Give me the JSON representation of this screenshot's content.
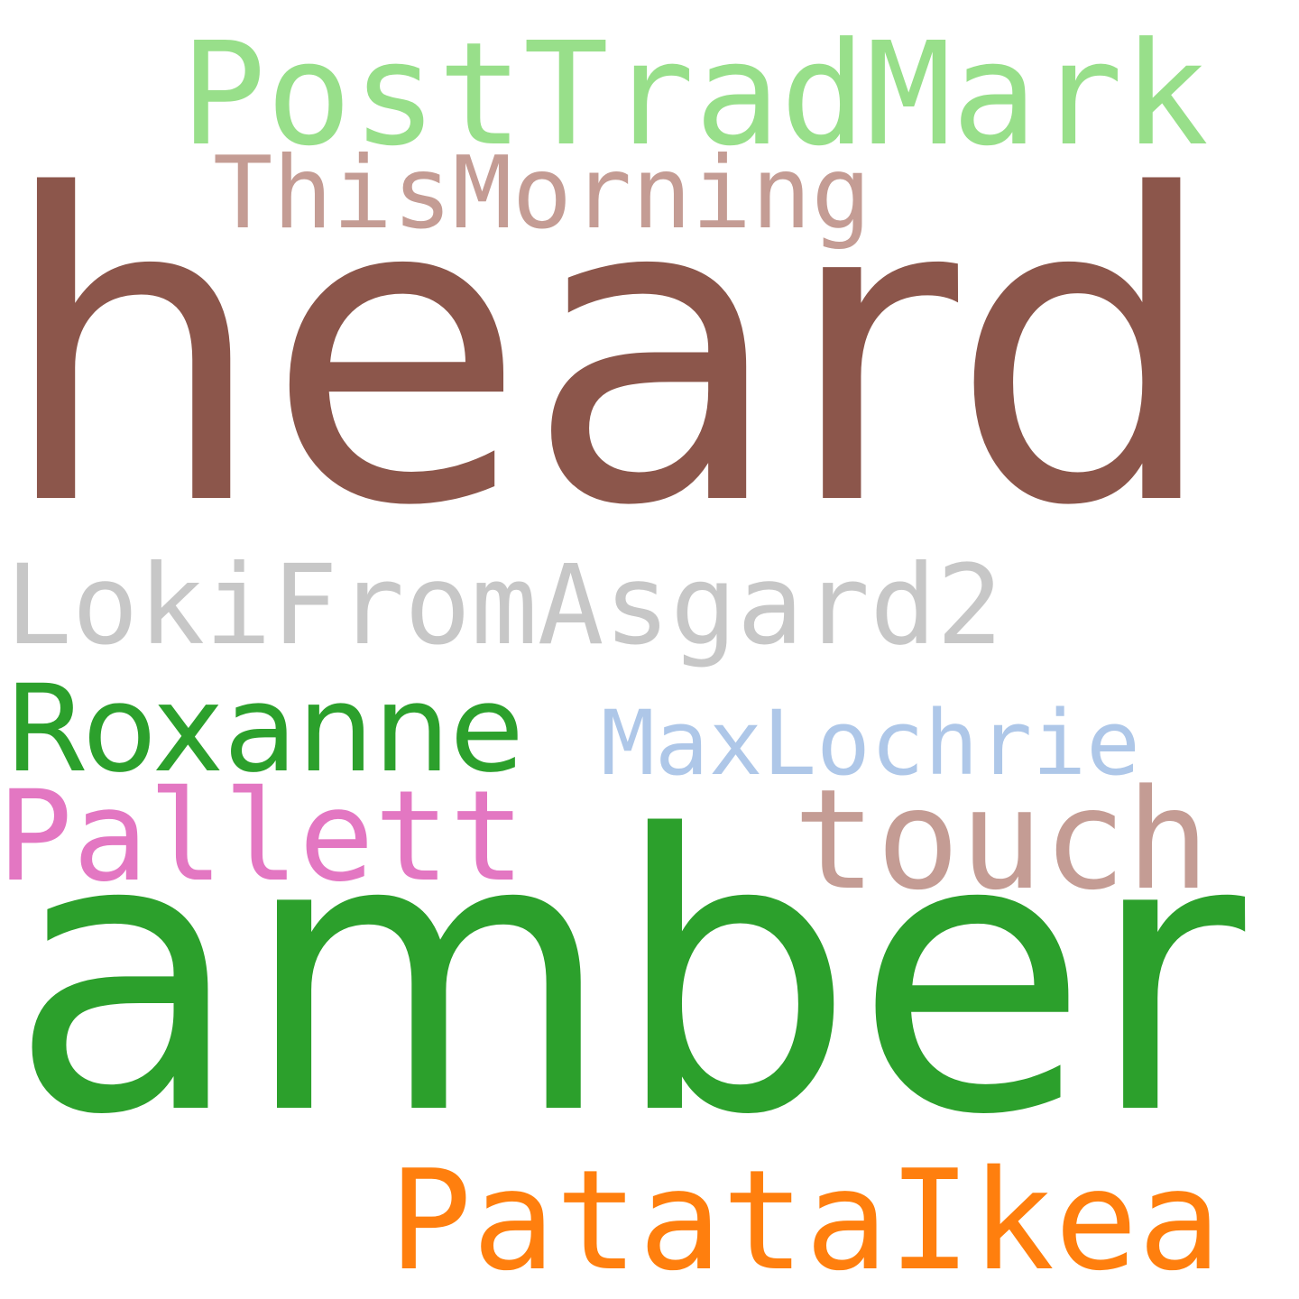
{
  "background": "#ffffff",
  "words": [
    {
      "id": "heard",
      "text": "heard",
      "color": "#8c564b"
    },
    {
      "id": "amber",
      "text": "amber",
      "color": "#2ca02c"
    },
    {
      "id": "lokifromasgard2",
      "text": "LokiFromAsgard2",
      "color": "#c7c7c7"
    },
    {
      "id": "posttradmark",
      "text": "PostTradMark",
      "color": "#98df8a"
    },
    {
      "id": "patataikea",
      "text": "PatataIkea",
      "color": "#ff7f0e"
    },
    {
      "id": "roxanne",
      "text": "Roxanne",
      "color": "#2ca02c"
    },
    {
      "id": "touch",
      "text": "touch",
      "color": "#c49c94"
    },
    {
      "id": "pallett",
      "text": "Pallett",
      "color": "#e377c2"
    },
    {
      "id": "thismorning",
      "text": "ThisMorning",
      "color": "#c49c94"
    },
    {
      "id": "maxlochrie",
      "text": "MaxLochrie",
      "color": "#aec7e8"
    }
  ]
}
